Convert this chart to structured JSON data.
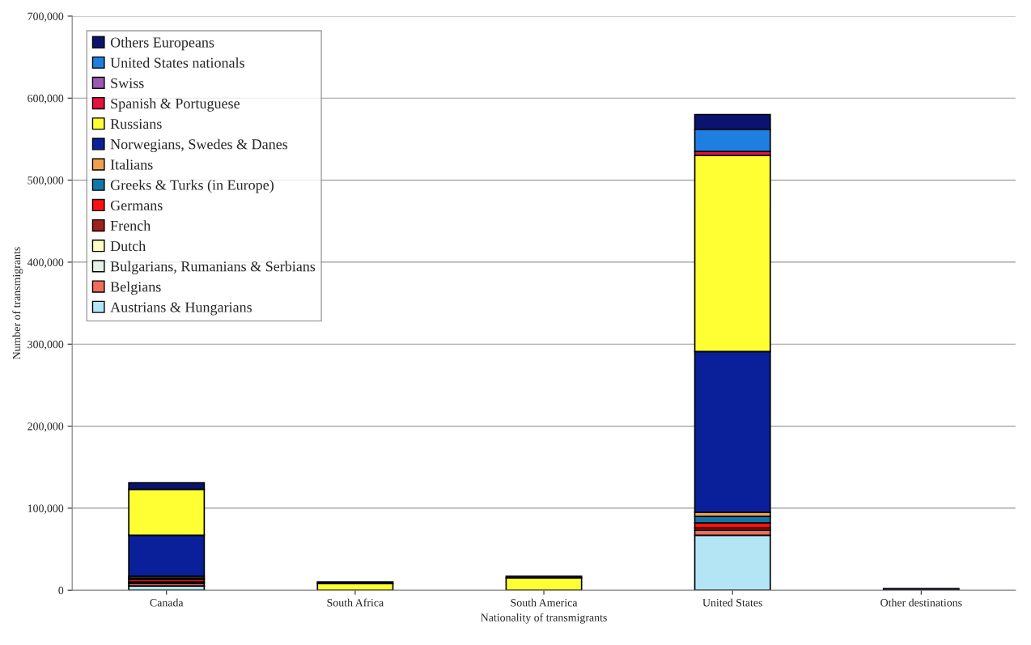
{
  "chart_data": {
    "type": "bar",
    "stacked": true,
    "xlabel": "Nationality of transmigrants",
    "ylabel": "Number of transmigrants",
    "categories": [
      "Canada",
      "South Africa",
      "South America",
      "United States",
      "Other destinations"
    ],
    "series": [
      {
        "name": "Austrians & Hungarians",
        "color": "#b3e5f5",
        "values": [
          5000,
          null,
          null,
          67000,
          null
        ]
      },
      {
        "name": "Belgians",
        "color": "#f06c5c",
        "values": [
          3000,
          null,
          null,
          6000,
          null
        ]
      },
      {
        "name": "Bulgarians, Rumanians & Serbians",
        "color": "#e6f0e6",
        "values": [
          null,
          null,
          null,
          null,
          null
        ]
      },
      {
        "name": "Dutch",
        "color": "#ffffc0",
        "values": [
          null,
          null,
          null,
          null,
          null
        ]
      },
      {
        "name": "French",
        "color": "#a0201c",
        "values": [
          2000,
          null,
          null,
          3000,
          null
        ]
      },
      {
        "name": "Germans",
        "color": "#ff1010",
        "values": [
          3000,
          null,
          null,
          6000,
          null
        ]
      },
      {
        "name": "Greeks & Turks (in Europe)",
        "color": "#1078a8",
        "values": [
          2000,
          null,
          null,
          8000,
          null
        ]
      },
      {
        "name": "Italians",
        "color": "#f0a050",
        "values": [
          2000,
          null,
          null,
          5000,
          null
        ]
      },
      {
        "name": "Norwegians, Swedes & Danes",
        "color": "#0a1f9a",
        "values": [
          50000,
          null,
          null,
          196000,
          null
        ]
      },
      {
        "name": "Russians",
        "color": "#ffff33",
        "values": [
          56000,
          8000,
          15000,
          239000,
          null
        ]
      },
      {
        "name": "Spanish & Portuguese",
        "color": "#e8103c",
        "values": [
          null,
          null,
          null,
          5000,
          null
        ]
      },
      {
        "name": "Swiss",
        "color": "#9b59b6",
        "values": [
          null,
          null,
          null,
          null,
          null
        ]
      },
      {
        "name": "United States nationals",
        "color": "#1e7fe0",
        "values": [
          null,
          null,
          null,
          27000,
          null
        ]
      },
      {
        "name": "Others Europeans",
        "color": "#0a1470",
        "values": [
          8000,
          2000,
          2000,
          18000,
          2000
        ]
      }
    ],
    "ylim": [
      0,
      700000
    ],
    "yticks": [
      0,
      {
        "value": 100000,
        "label": "100,000"
      },
      {
        "value": 200000,
        "label": "200,000"
      },
      {
        "value": 300000,
        "label": "300,000"
      },
      {
        "value": 400000,
        "label": "400,000"
      },
      {
        "value": 500000,
        "label": "500,000"
      },
      {
        "value": 600000,
        "label": "600,000"
      },
      {
        "value": 700000,
        "label": "700,000"
      }
    ],
    "grid": "y",
    "legend": "top left"
  }
}
